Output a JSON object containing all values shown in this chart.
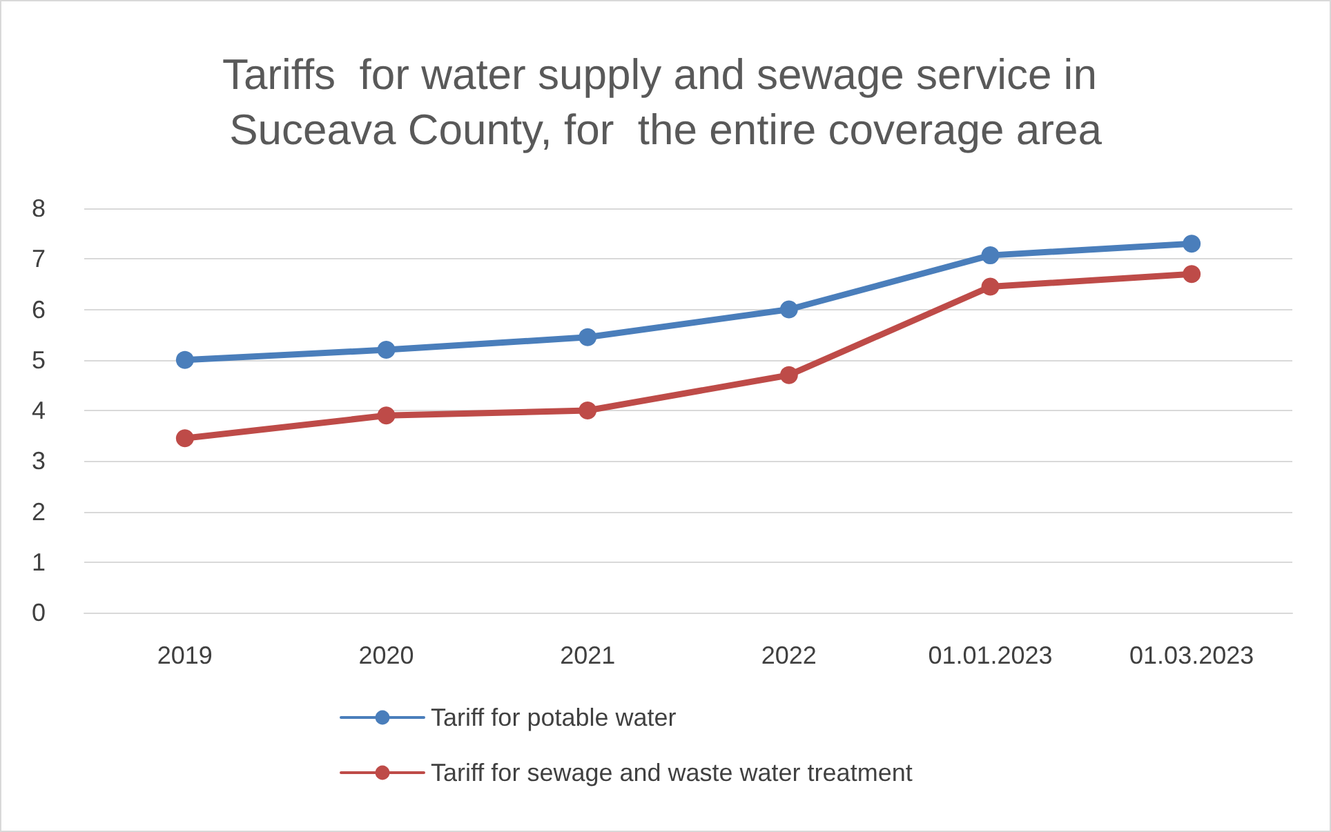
{
  "chart_data": {
    "type": "line",
    "title": "Tariffs  for water supply and sewage service in Suceava County, for  the entire coverage area",
    "categories": [
      "2019",
      "2020",
      "2021",
      "2022",
      "01.01.2023",
      "01.03.2023"
    ],
    "series": [
      {
        "name": "Tariff for potable water",
        "color": "#4a7ebb",
        "values": [
          5.0,
          5.2,
          5.45,
          6.0,
          7.07,
          7.3
        ]
      },
      {
        "name": "Tariff for sewage and waste water treatment",
        "color": "#be4b48",
        "values": [
          3.45,
          3.9,
          4.0,
          4.7,
          6.45,
          6.7
        ]
      }
    ],
    "ylim": [
      0,
      8
    ],
    "yticks": [
      0,
      1,
      2,
      3,
      4,
      5,
      6,
      7,
      8
    ],
    "grid": "y",
    "legend": "bottom",
    "marker": "circle",
    "line_style": "solid"
  }
}
